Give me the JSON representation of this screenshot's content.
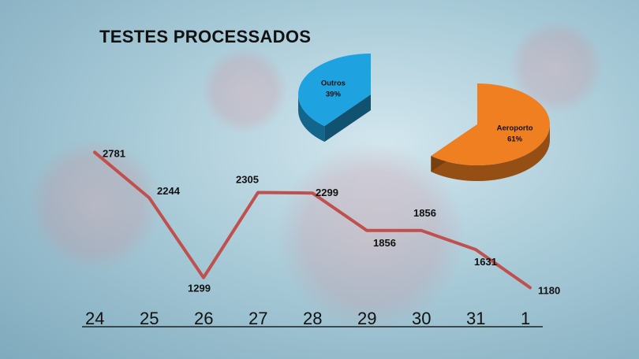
{
  "chart_data": [
    {
      "type": "line",
      "title": "TESTES PROCESSADOS",
      "categories": [
        "24",
        "25",
        "26",
        "27",
        "28",
        "29",
        "30",
        "31",
        "1"
      ],
      "values": [
        2781,
        2244,
        1299,
        2305,
        2299,
        1856,
        1856,
        1631,
        1180
      ],
      "data_labels": [
        "2781",
        "2244",
        "1299",
        "2305",
        "2299",
        "1856",
        "1856",
        "1631",
        "1180"
      ],
      "color": "#c0504d",
      "ylim": [
        1100,
        2850
      ],
      "grid": false,
      "legend": "none"
    },
    {
      "type": "pie",
      "slices": [
        {
          "name": "Aeroporto",
          "value": 61,
          "pct_label": "61%",
          "color": "#f07f21"
        },
        {
          "name": "Outros",
          "value": 39,
          "pct_label": "39%",
          "color": "#1fa3e0"
        }
      ]
    }
  ]
}
